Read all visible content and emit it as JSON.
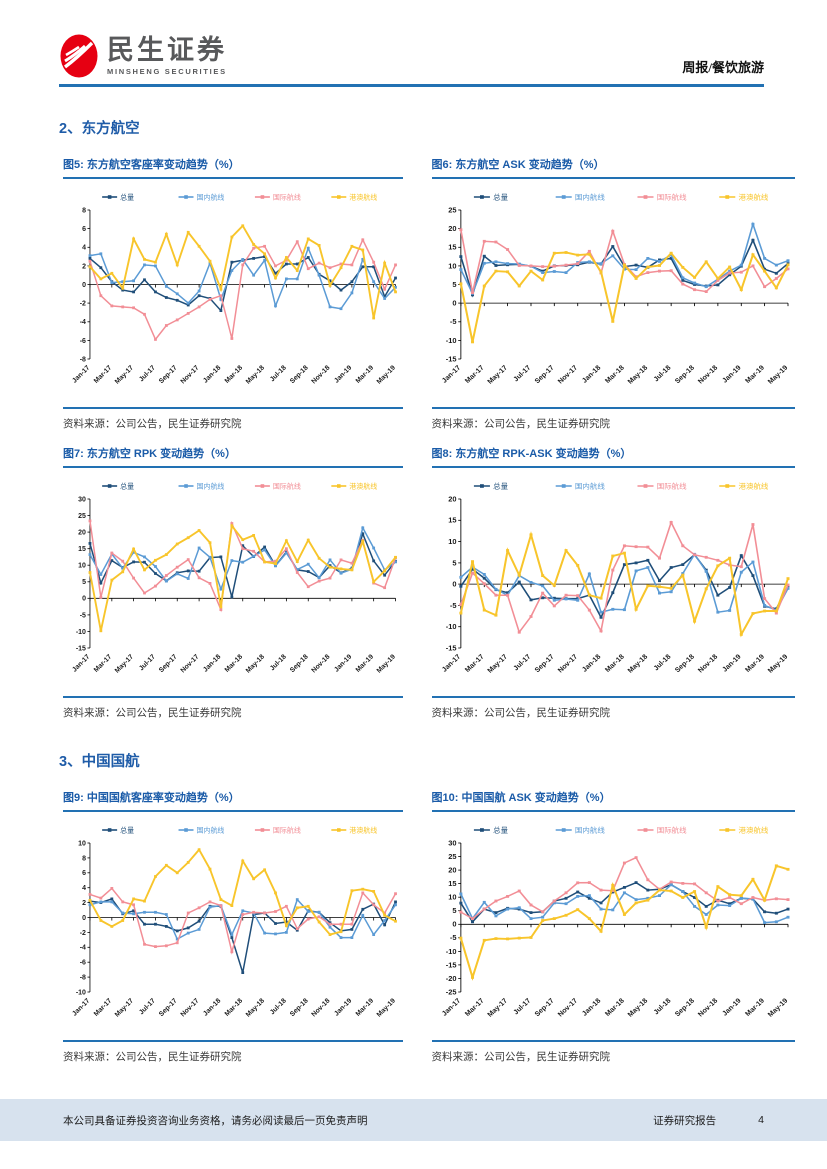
{
  "header": {
    "brand_cn": "民生证券",
    "brand_en": "MINSHENG SECURITIES",
    "doc_type": "周报/餐饮旅游"
  },
  "sections": [
    {
      "title": "2、东方航空"
    },
    {
      "title": "3、中国国航"
    }
  ],
  "source_label": "资料来源：公司公告，民生证券研究院",
  "footer": {
    "left": "本公司具备证券投资咨询业务资格，请务必阅读最后一页免责声明",
    "right": "证券研究报告",
    "page": "4"
  },
  "palette": {
    "total": "#1F4E79",
    "domestic": "#5B9BD5",
    "international": "#F28E96",
    "regional": "#F8C52B",
    "accent_blue": "#2271B3",
    "logo_red": "#E60012",
    "footer_bg": "#D7E2EE"
  },
  "chart_data": {
    "type": "line",
    "x_categories": [
      "Jan-17",
      "Feb-17",
      "Mar-17",
      "Apr-17",
      "May-17",
      "Jun-17",
      "Jul-17",
      "Aug-17",
      "Sep-17",
      "Oct-17",
      "Nov-17",
      "Dec-17",
      "Jan-18",
      "Feb-18",
      "Mar-18",
      "Apr-18",
      "May-18",
      "Jun-18",
      "Jul-18",
      "Aug-18",
      "Sep-18",
      "Oct-18",
      "Nov-18",
      "Dec-18",
      "Jan-19",
      "Feb-19",
      "Mar-19",
      "Apr-19",
      "May-19"
    ],
    "x_tick_shown_every": 2,
    "legend_position": "top",
    "grid": false,
    "charts": [
      {
        "title": "图5: 东方航空客座率变动趋势（%）",
        "ylim": [
          -8,
          8
        ],
        "ystep": 2,
        "series": [
          {
            "name": "总量",
            "color_key": "total",
            "values": [
              2.8,
              1.8,
              0.3,
              -0.6,
              -0.8,
              0.5,
              -0.8,
              -1.4,
              -1.7,
              -2.2,
              -1.2,
              -1.5,
              -2.8,
              2.4,
              2.6,
              2.8,
              3.0,
              1.2,
              2.2,
              2.2,
              2.9,
              1.1,
              0.4,
              -0.6,
              0.3,
              1.9,
              1.9,
              -1.3,
              0.7
            ]
          },
          {
            "name": "国内航线",
            "color_key": "domestic",
            "values": [
              3.1,
              3.3,
              0.2,
              0.3,
              0.4,
              2.1,
              2.0,
              -0.2,
              -1.0,
              -2.0,
              -0.7,
              2.3,
              -1.6,
              1.5,
              2.7,
              1.0,
              2.6,
              -2.3,
              0.6,
              0.6,
              3.9,
              1.0,
              -2.4,
              -2.6,
              -0.9,
              2.7,
              0.3,
              -1.5,
              -0.3
            ]
          },
          {
            "name": "国际航线",
            "color_key": "international",
            "values": [
              2.5,
              -1.2,
              -2.3,
              -2.4,
              -2.5,
              -3.2,
              -5.9,
              -4.4,
              -3.8,
              -3.1,
              -2.4,
              -1.6,
              -1.2,
              -5.8,
              2.1,
              3.9,
              4.1,
              2.0,
              2.6,
              4.6,
              1.7,
              2.3,
              1.8,
              2.2,
              2.1,
              4.8,
              2.4,
              -0.5,
              2.1
            ]
          },
          {
            "name": "港澳航线",
            "color_key": "regional",
            "values": [
              1.9,
              0.6,
              1.2,
              -0.4,
              4.9,
              2.7,
              2.4,
              5.4,
              2.1,
              5.6,
              4.1,
              2.5,
              -0.5,
              5.1,
              6.3,
              4.3,
              3.3,
              0.7,
              2.9,
              1.5,
              4.9,
              4.2,
              -0.1,
              1.8,
              4.1,
              3.7,
              -3.6,
              2.3,
              -0.8
            ]
          }
        ]
      },
      {
        "title": "图6: 东方航空 ASK 变动趋势（%）",
        "ylim": [
          -15,
          25
        ],
        "ystep": 5,
        "series": [
          {
            "name": "总量",
            "color_key": "total",
            "values": [
              12.5,
              2.2,
              12.6,
              10.1,
              10.3,
              10.4,
              9.9,
              8.6,
              10.0,
              10.1,
              10.3,
              11.0,
              10.5,
              15.2,
              9.8,
              10.2,
              9.6,
              11.6,
              12.0,
              6.1,
              5.0,
              4.6,
              4.9,
              7.6,
              9.9,
              16.9,
              9.1,
              8.0,
              10.6
            ]
          },
          {
            "name": "国内航线",
            "color_key": "domestic",
            "values": [
              9.0,
              2.6,
              10.7,
              11.1,
              10.6,
              10.5,
              9.9,
              8.2,
              8.5,
              8.2,
              10.9,
              11.1,
              10.6,
              12.7,
              9.1,
              9.0,
              12.0,
              11.2,
              12.9,
              6.8,
              5.4,
              4.4,
              6.4,
              8.6,
              10.2,
              21.2,
              12.0,
              10.2,
              11.4
            ]
          },
          {
            "name": "国际航线",
            "color_key": "international",
            "values": [
              19.7,
              2.8,
              16.6,
              16.4,
              14.4,
              10.1,
              10.0,
              9.8,
              9.9,
              10.2,
              10.6,
              13.9,
              8.1,
              19.3,
              10.4,
              7.1,
              8.2,
              8.6,
              8.7,
              5.1,
              3.6,
              3.1,
              6.1,
              8.1,
              8.3,
              10.0,
              4.4,
              6.6,
              9.2
            ]
          },
          {
            "name": "港澳航线",
            "color_key": "regional",
            "values": [
              5.2,
              -10.4,
              4.6,
              8.6,
              8.4,
              4.6,
              8.6,
              6.2,
              13.4,
              13.6,
              12.9,
              13.1,
              8.4,
              -4.9,
              10.2,
              6.6,
              9.7,
              10.1,
              13.4,
              9.6,
              6.9,
              11.1,
              6.6,
              9.7,
              3.6,
              13.0,
              8.6,
              4.1,
              10.3
            ]
          }
        ]
      },
      {
        "title": "图7: 东方航空 RPK 变动趋势（%）",
        "ylim": [
          -15,
          30
        ],
        "ystep": 5,
        "series": [
          {
            "name": "总量",
            "color_key": "total",
            "values": [
              16.6,
              4.6,
              11.4,
              9.3,
              11.0,
              10.9,
              7.5,
              5.3,
              7.7,
              8.3,
              8.2,
              12.3,
              12.5,
              0.4,
              15.9,
              12.6,
              15.5,
              9.9,
              14.0,
              8.6,
              8.1,
              6.3,
              9.9,
              7.7,
              9.1,
              19.5,
              11.3,
              7.0,
              11.2
            ]
          },
          {
            "name": "国内航线",
            "color_key": "domestic",
            "values": [
              13.2,
              7.2,
              13.4,
              9.1,
              13.9,
              12.5,
              9.6,
              5.2,
              7.4,
              6.0,
              15.2,
              12.4,
              2.8,
              11.4,
              10.9,
              12.7,
              14.6,
              9.8,
              13.7,
              8.7,
              10.3,
              6.2,
              11.6,
              7.6,
              8.8,
              21.3,
              15.2,
              8.6,
              11.0
            ]
          },
          {
            "name": "国际航线",
            "color_key": "international",
            "values": [
              23.4,
              0.3,
              13.7,
              11.2,
              6.1,
              1.6,
              3.7,
              6.9,
              9.4,
              11.7,
              6.2,
              4.5,
              -3.4,
              22.6,
              15.0,
              14.2,
              11.0,
              11.2,
              15.0,
              7.8,
              3.5,
              5.2,
              6.1,
              11.6,
              10.6,
              17.5,
              4.6,
              3.2,
              12.3
            ]
          },
          {
            "name": "港澳航线",
            "color_key": "regional",
            "values": [
              7.8,
              -9.8,
              5.5,
              8.0,
              14.9,
              8.6,
              11.5,
              13.2,
              16.4,
              18.3,
              20.5,
              16.8,
              -2.6,
              21.9,
              17.7,
              19.0,
              11.0,
              10.5,
              17.4,
              11.1,
              17.6,
              12.1,
              9.4,
              8.9,
              8.6,
              17.2,
              5.0,
              8.3,
              12.4
            ]
          }
        ]
      },
      {
        "title": "图8: 东方航空 RPK-ASK 变动趋势（%）",
        "ylim": [
          -15,
          20
        ],
        "ystep": 5,
        "series": [
          {
            "name": "总量",
            "color_key": "total",
            "values": [
              -0.5,
              3.5,
              1.4,
              -1.3,
              -2.0,
              0.5,
              -3.7,
              -3.2,
              -3.3,
              -3.4,
              -3.4,
              -2.6,
              -7.8,
              -2.0,
              4.6,
              5.0,
              5.6,
              0.8,
              3.9,
              4.6,
              6.9,
              3.3,
              -2.6,
              -0.8,
              6.7,
              2.0,
              -5.2,
              -5.8,
              -0.4
            ]
          },
          {
            "name": "国内航线",
            "color_key": "domestic",
            "values": [
              1.6,
              4.0,
              2.3,
              -1.2,
              -2.6,
              2.0,
              0.4,
              -0.4,
              -3.8,
              -3.5,
              -3.8,
              2.4,
              -6.6,
              -5.9,
              -6.0,
              3.1,
              3.9,
              -2.1,
              -1.8,
              2.5,
              7.0,
              3.0,
              -6.6,
              -6.2,
              2.8,
              5.2,
              -5.0,
              -6.1,
              -1.0
            ]
          },
          {
            "name": "国际航线",
            "color_key": "international",
            "values": [
              -4.8,
              2.6,
              0.1,
              -2.6,
              -2.6,
              -11.3,
              -7.6,
              -2.1,
              -5.1,
              -2.6,
              -2.7,
              -6.1,
              -11.0,
              3.3,
              9.0,
              8.8,
              8.7,
              6.1,
              14.5,
              9.0,
              6.9,
              6.3,
              5.6,
              4.5,
              4.1,
              14.0,
              -3.4,
              -6.8,
              -0.2
            ]
          },
          {
            "name": "港澳航线",
            "color_key": "regional",
            "values": [
              -6.8,
              5.3,
              -6.1,
              -7.3,
              7.9,
              2.1,
              11.6,
              2.0,
              -0.3,
              7.9,
              4.4,
              -2.6,
              -3.3,
              6.6,
              7.3,
              -5.9,
              -0.4,
              -0.6,
              -1.0,
              2.1,
              -8.7,
              -1.1,
              4.3,
              6.1,
              -11.8,
              -6.9,
              -6.3,
              -6.3,
              1.3
            ]
          }
        ]
      },
      {
        "title": "图9: 中国国航客座率变动趋势（%）",
        "ylim": [
          -10,
          10
        ],
        "ystep": 2,
        "series": [
          {
            "name": "总量",
            "color_key": "total",
            "values": [
              2.2,
              2.0,
              2.5,
              0.5,
              0.9,
              -0.9,
              -0.9,
              -1.2,
              -1.8,
              -1.4,
              -0.5,
              1.5,
              1.5,
              -2.7,
              -7.4,
              0.4,
              0.6,
              -0.8,
              -0.6,
              -1.7,
              0.9,
              0.7,
              -0.7,
              -1.8,
              -1.6,
              1.1,
              1.8,
              -1.0,
              2.1
            ]
          },
          {
            "name": "国内航线",
            "color_key": "domestic",
            "values": [
              1.7,
              2.1,
              2.1,
              0.6,
              0.5,
              0.7,
              0.7,
              0.4,
              -2.9,
              -2.1,
              -1.6,
              1.4,
              1.6,
              -2.3,
              0.9,
              0.6,
              -2.1,
              -2.2,
              -2.0,
              2.4,
              0.8,
              0.7,
              -1.3,
              -2.7,
              -2.7,
              0.3,
              -2.3,
              -0.4,
              1.7
            ]
          },
          {
            "name": "国际航线",
            "color_key": "international",
            "values": [
              3.1,
              2.6,
              3.9,
              2.1,
              1.7,
              -3.6,
              -3.9,
              -3.8,
              -3.4,
              0.6,
              1.3,
              2.1,
              1.6,
              -4.6,
              0.4,
              0.7,
              0.6,
              0.8,
              1.5,
              -1.5,
              -0.2,
              0.1,
              -0.9,
              -0.9,
              -0.9,
              3.3,
              1.7,
              0.6,
              3.2
            ]
          },
          {
            "name": "港澳航线",
            "color_key": "regional",
            "values": [
              2.3,
              -0.4,
              -1.2,
              -0.4,
              2.5,
              2.2,
              5.5,
              7.0,
              6.0,
              7.4,
              9.1,
              6.5,
              2.4,
              1.6,
              7.6,
              5.2,
              6.4,
              3.3,
              -1.1,
              1.3,
              1.5,
              -0.6,
              -2.3,
              -1.9,
              3.6,
              3.8,
              3.5,
              0.3,
              -0.5
            ]
          }
        ]
      },
      {
        "title": "图10: 中国国航 ASK 变动趋势（%）",
        "ylim": [
          -25,
          30
        ],
        "ystep": 5,
        "series": [
          {
            "name": "总量",
            "color_key": "total",
            "values": [
              7.8,
              0.9,
              5.6,
              4.3,
              5.9,
              5.6,
              4.3,
              4.6,
              8.6,
              9.6,
              11.9,
              9.6,
              7.9,
              11.9,
              13.6,
              15.4,
              12.6,
              12.9,
              14.6,
              12.1,
              9.9,
              6.6,
              8.9,
              7.6,
              9.6,
              9.3,
              4.6,
              4.1,
              5.6
            ]
          },
          {
            "name": "国内航线",
            "color_key": "domestic",
            "values": [
              11.2,
              2.1,
              8.1,
              3.1,
              5.6,
              6.1,
              2.1,
              2.6,
              7.9,
              7.6,
              10.3,
              10.6,
              5.6,
              5.3,
              11.6,
              9.1,
              9.6,
              10.6,
              14.6,
              12.1,
              6.6,
              3.6,
              7.1,
              6.9,
              9.6,
              9.4,
              0.6,
              0.9,
              2.6
            ]
          },
          {
            "name": "国际航线",
            "color_key": "international",
            "values": [
              4.5,
              2.1,
              5.6,
              8.6,
              10.3,
              12.3,
              7.1,
              4.6,
              8.6,
              11.6,
              15.3,
              15.4,
              12.6,
              12.4,
              22.6,
              24.6,
              16.4,
              12.9,
              15.6,
              15.1,
              14.9,
              11.6,
              8.6,
              9.9,
              7.6,
              9.9,
              8.9,
              9.4,
              9.1
            ]
          },
          {
            "name": "港澳航线",
            "color_key": "regional",
            "values": [
              -5.1,
              -19.6,
              -5.9,
              -5.3,
              -5.4,
              -5.1,
              -4.9,
              1.4,
              2.1,
              3.3,
              5.4,
              2.1,
              -2.6,
              14.4,
              3.6,
              7.9,
              8.9,
              12.6,
              12.3,
              9.9,
              12.1,
              -1.1,
              13.9,
              10.9,
              10.6,
              16.6,
              8.9,
              21.6,
              20.3
            ]
          }
        ]
      }
    ]
  }
}
